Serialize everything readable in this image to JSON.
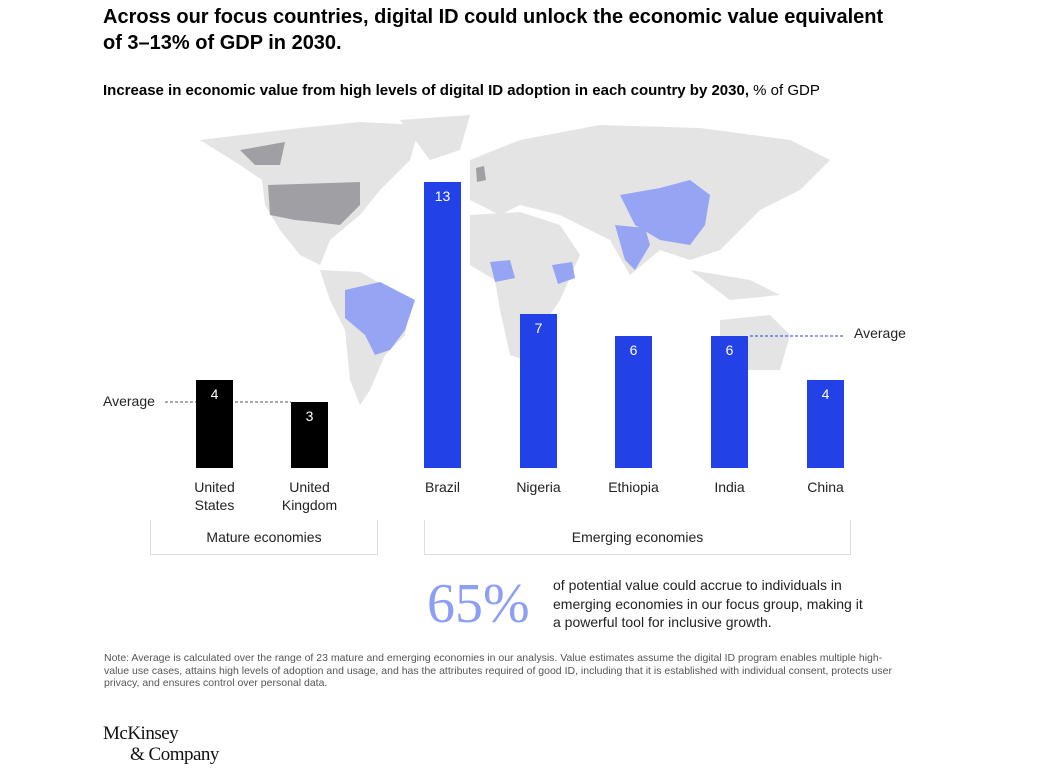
{
  "title": "Across our focus countries, digital ID could unlock the economic value equivalent of 3–13% of GDP in 2030.",
  "subtitle_bold": "Increase in economic value from high levels of digital ID adoption in each country by 2030,",
  "subtitle_unit": "% of GDP",
  "chart_data": {
    "type": "bar",
    "categories": [
      "United States",
      "United Kingdom",
      "Brazil",
      "Nigeria",
      "Ethiopia",
      "India",
      "China"
    ],
    "category_lines": [
      [
        "United",
        "States"
      ],
      [
        "United",
        "Kingdom"
      ],
      [
        "Brazil"
      ],
      [
        "Nigeria"
      ],
      [
        "Ethiopia"
      ],
      [
        "India"
      ],
      [
        "China"
      ]
    ],
    "values": [
      4,
      3,
      13,
      7,
      6,
      6,
      4
    ],
    "groups": [
      {
        "name": "Mature economies",
        "members": [
          "United States",
          "United Kingdom"
        ],
        "color": "#000000",
        "average": 3
      },
      {
        "name": "Emerging economies",
        "members": [
          "Brazil",
          "Nigeria",
          "Ethiopia",
          "India",
          "China"
        ],
        "color": "#2241e6",
        "average": 6
      }
    ],
    "average_label": "Average",
    "ylim": [
      0,
      13
    ]
  },
  "callout": {
    "value": "65%",
    "text": "of potential value could accrue to individuals in emerging economies in our focus group, making it a powerful tool for inclusive growth."
  },
  "note": "Note: Average is calculated over the range of 23 mature and emerging economies in our analysis. Value estimates assume the digital ID program enables multiple high-value use cases, attains high levels of adoption and usage, and has the attributes required of good ID, including that it is established with individual consent, protects user privacy, and ensures control over personal data.",
  "logo": {
    "line1": "McKinsey",
    "line2": "& Company"
  }
}
